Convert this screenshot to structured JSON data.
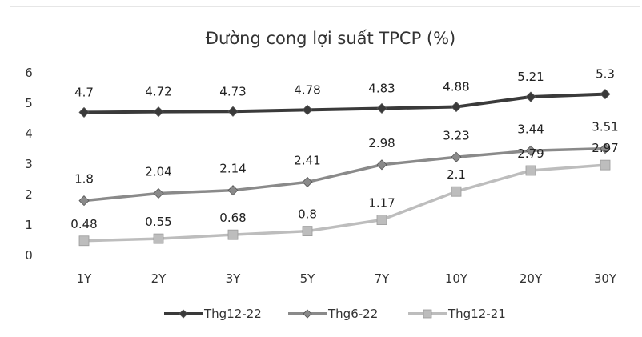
{
  "chart_data": {
    "type": "line",
    "title": "Đường cong lợi suất TPCP (%)",
    "xlabel": "",
    "ylabel": "",
    "categories": [
      "1Y",
      "2Y",
      "3Y",
      "5Y",
      "7Y",
      "10Y",
      "20Y",
      "30Y"
    ],
    "ylim": [
      0,
      6
    ],
    "yticks": [
      0,
      1,
      2,
      3,
      4,
      5,
      6
    ],
    "grid": false,
    "legend": "bottom",
    "series": [
      {
        "name": "Thg12-22",
        "values": [
          4.7,
          4.72,
          4.73,
          4.78,
          4.83,
          4.88,
          5.21,
          5.3
        ],
        "labels": [
          "4.7",
          "4.72",
          "4.73",
          "4.78",
          "4.83",
          "4.88",
          "5.21",
          "5.3"
        ],
        "color": "#3a3a3a",
        "marker": "diamond"
      },
      {
        "name": "Thg6-22",
        "values": [
          1.8,
          2.04,
          2.14,
          2.41,
          2.98,
          3.23,
          3.44,
          3.51
        ],
        "labels": [
          "1.8",
          "2.04",
          "2.14",
          "2.41",
          "2.98",
          "3.23",
          "3.44",
          "3.51"
        ],
        "color": "#8a8a8a",
        "marker": "diamond"
      },
      {
        "name": "Thg12-21",
        "values": [
          0.48,
          0.55,
          0.68,
          0.8,
          1.17,
          2.1,
          2.79,
          2.97
        ],
        "labels": [
          "0.48",
          "0.55",
          "0.68",
          "0.8",
          "1.17",
          "2.1",
          "2.79",
          "2.97"
        ],
        "color": "#bdbdbd",
        "marker": "square"
      }
    ]
  }
}
